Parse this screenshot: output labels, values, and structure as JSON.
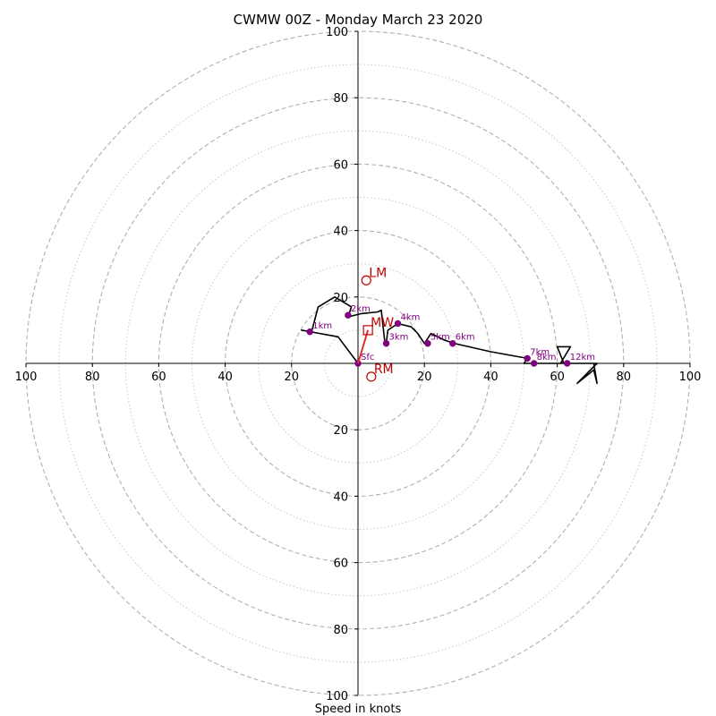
{
  "chart_data": {
    "type": "hodograph",
    "title": "CWMW 00Z - Monday March 23 2020",
    "xlabel": "Speed in knots",
    "range": [
      -100,
      100
    ],
    "ring_step_major": 20,
    "ring_step_minor": 10,
    "axis_ticks": [
      "100",
      "80",
      "60",
      "40",
      "20",
      "0",
      "20",
      "40",
      "60",
      "80",
      "100"
    ],
    "colors": {
      "trace": "#000000",
      "height_marker": "#800080",
      "storm_motion": "#c00000",
      "mean_wind_vector": "#e03030",
      "ring_major": "#b0b0b0",
      "ring_minor": "#c8c8c8"
    },
    "trace": [
      [
        0,
        0
      ],
      [
        -6,
        8
      ],
      [
        -17,
        10
      ],
      [
        -14,
        9.5
      ],
      [
        -12,
        17
      ],
      [
        -7,
        20
      ],
      [
        -2,
        17
      ],
      [
        -3,
        14
      ],
      [
        1,
        15
      ],
      [
        6,
        15.5
      ],
      [
        7,
        16
      ],
      [
        8,
        7
      ],
      [
        8.5,
        6
      ],
      [
        9,
        10
      ],
      [
        12,
        12
      ],
      [
        16,
        11
      ],
      [
        18,
        9
      ],
      [
        20,
        6
      ],
      [
        22,
        9
      ],
      [
        26,
        7
      ],
      [
        29,
        6
      ],
      [
        40,
        3.5
      ],
      [
        51,
        1.5
      ],
      [
        50,
        0
      ],
      [
        53,
        0
      ],
      [
        62,
        0
      ],
      [
        60,
        5
      ],
      [
        64,
        5
      ],
      [
        61,
        0
      ],
      [
        72,
        0
      ],
      [
        66,
        -6
      ],
      [
        71,
        -2
      ],
      [
        72,
        -6
      ],
      [
        71,
        0
      ],
      [
        72,
        0
      ]
    ],
    "height_markers": [
      {
        "label": "Sfc",
        "u": 0,
        "v": 0
      },
      {
        "label": "1km",
        "u": -14.5,
        "v": 9.5
      },
      {
        "label": "2km",
        "u": -3,
        "v": 14.5
      },
      {
        "label": "3km",
        "u": 8.5,
        "v": 6
      },
      {
        "label": "4km",
        "u": 12,
        "v": 12
      },
      {
        "label": "5km",
        "u": 21,
        "v": 6
      },
      {
        "label": "6km",
        "u": 28.5,
        "v": 6
      },
      {
        "label": "7km",
        "u": 51,
        "v": 1.5
      },
      {
        "label": "8km",
        "u": 53,
        "v": 0
      },
      {
        "label": "12km",
        "u": 63,
        "v": 0
      }
    ],
    "storm_motion": [
      {
        "label": "LM",
        "u": 2.5,
        "v": 25,
        "marker": "circle"
      },
      {
        "label": "RM",
        "u": 4,
        "v": -4,
        "marker": "circle"
      },
      {
        "label": "MW",
        "u": 3,
        "v": 10,
        "marker": "square"
      }
    ],
    "mean_wind_vector": {
      "from": [
        0,
        0
      ],
      "to": [
        3,
        10
      ]
    }
  }
}
